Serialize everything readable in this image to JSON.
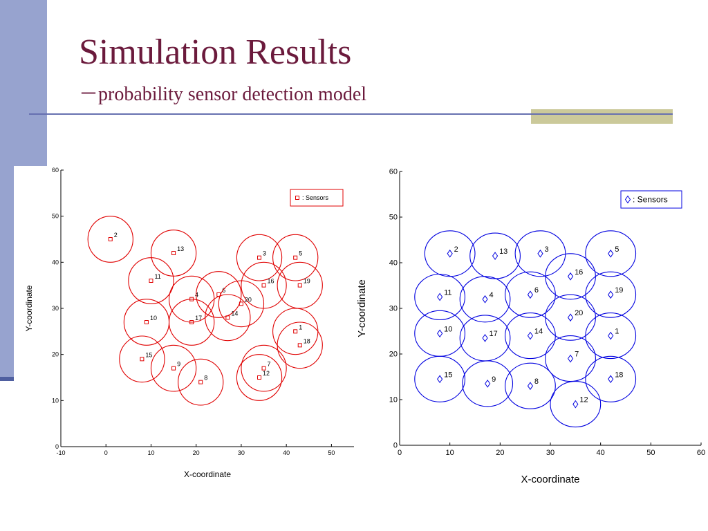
{
  "slide": {
    "title": "Simulation Results",
    "subtitle": "－probability sensor detection model",
    "colors": {
      "title": "#6b1a3c",
      "left_bar": "#97a3cf",
      "rule": "#6670b0",
      "accent_box": "#cbc99a"
    }
  },
  "chart_data": [
    {
      "type": "scatter",
      "marker": "square",
      "color": "#e00000",
      "circle_radius": 5,
      "xlabel": "X-coordinate",
      "ylabel": "Y-coordinate",
      "xlim": [
        -10,
        55
      ],
      "ylim": [
        0,
        60
      ],
      "xticks": [
        -10,
        0,
        10,
        20,
        30,
        40,
        50
      ],
      "yticks": [
        0,
        10,
        20,
        30,
        40,
        50,
        60
      ],
      "legend": {
        "label": ": Sensors",
        "position": "top-right"
      },
      "points": [
        {
          "id": "1",
          "x": 42,
          "y": 25
        },
        {
          "id": "2",
          "x": 1,
          "y": 45
        },
        {
          "id": "3",
          "x": 34,
          "y": 41
        },
        {
          "id": "4",
          "x": 19,
          "y": 32
        },
        {
          "id": "5",
          "x": 42,
          "y": 41
        },
        {
          "id": "6",
          "x": 25,
          "y": 33
        },
        {
          "id": "7",
          "x": 35,
          "y": 17
        },
        {
          "id": "8",
          "x": 21,
          "y": 14
        },
        {
          "id": "9",
          "x": 15,
          "y": 17
        },
        {
          "id": "10",
          "x": 9,
          "y": 27
        },
        {
          "id": "11",
          "x": 10,
          "y": 36
        },
        {
          "id": "12",
          "x": 34,
          "y": 15
        },
        {
          "id": "13",
          "x": 15,
          "y": 42
        },
        {
          "id": "14",
          "x": 27,
          "y": 28
        },
        {
          "id": "15",
          "x": 8,
          "y": 19
        },
        {
          "id": "16",
          "x": 35,
          "y": 35
        },
        {
          "id": "17",
          "x": 19,
          "y": 27
        },
        {
          "id": "18",
          "x": 43,
          "y": 22
        },
        {
          "id": "19",
          "x": 43,
          "y": 35
        },
        {
          "id": "20",
          "x": 30,
          "y": 31
        }
      ]
    },
    {
      "type": "scatter",
      "marker": "diamond",
      "color": "#0000e0",
      "circle_radius": 5,
      "xlabel": "X-coordinate",
      "ylabel": "Y-coordinate",
      "xlim": [
        0,
        60
      ],
      "ylim": [
        0,
        60
      ],
      "xticks": [
        0,
        10,
        20,
        30,
        40,
        50,
        60
      ],
      "yticks": [
        0,
        10,
        20,
        30,
        40,
        50,
        60
      ],
      "legend": {
        "label": ": Sensors",
        "position": "top-right"
      },
      "points": [
        {
          "id": "1",
          "x": 42,
          "y": 24
        },
        {
          "id": "2",
          "x": 10,
          "y": 42
        },
        {
          "id": "3",
          "x": 28,
          "y": 42
        },
        {
          "id": "4",
          "x": 17,
          "y": 32
        },
        {
          "id": "5",
          "x": 42,
          "y": 42
        },
        {
          "id": "6",
          "x": 26,
          "y": 33
        },
        {
          "id": "7",
          "x": 34,
          "y": 19
        },
        {
          "id": "8",
          "x": 26,
          "y": 13
        },
        {
          "id": "9",
          "x": 17.5,
          "y": 13.5
        },
        {
          "id": "10",
          "x": 8,
          "y": 24.5
        },
        {
          "id": "11",
          "x": 8,
          "y": 32.5
        },
        {
          "id": "12",
          "x": 35,
          "y": 9
        },
        {
          "id": "13",
          "x": 19,
          "y": 41.5
        },
        {
          "id": "14",
          "x": 26,
          "y": 24
        },
        {
          "id": "15",
          "x": 8,
          "y": 14.5
        },
        {
          "id": "16",
          "x": 34,
          "y": 37
        },
        {
          "id": "17",
          "x": 17,
          "y": 23.5
        },
        {
          "id": "18",
          "x": 42,
          "y": 14.5
        },
        {
          "id": "19",
          "x": 42,
          "y": 33
        },
        {
          "id": "20",
          "x": 34,
          "y": 28
        }
      ]
    }
  ]
}
